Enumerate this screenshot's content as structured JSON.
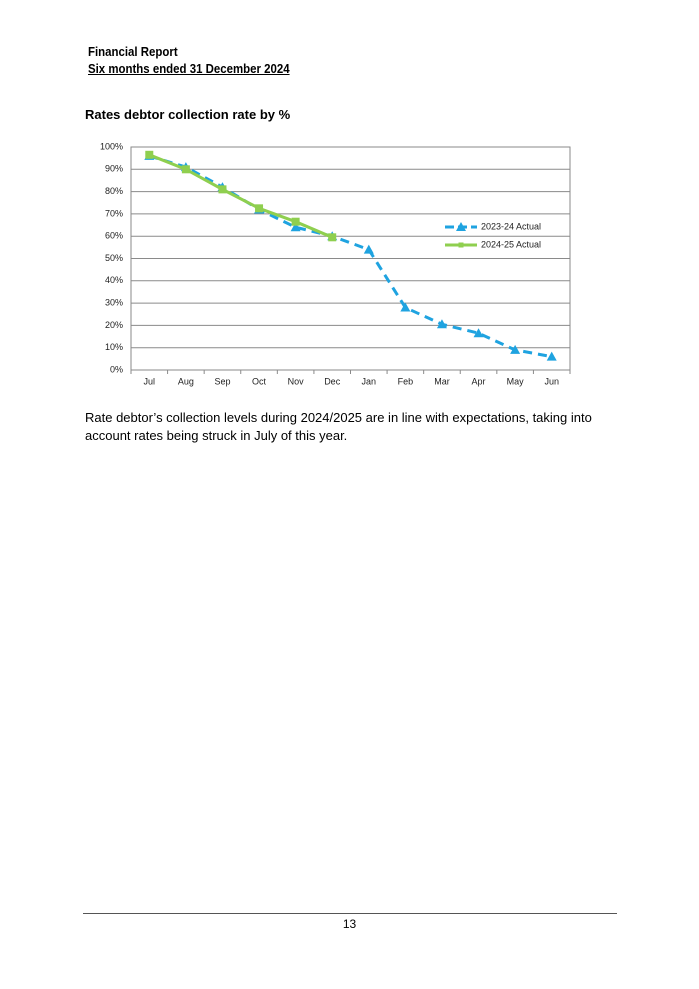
{
  "header": {
    "title": "Financial Report",
    "subtitle": "Six months ended 31 December 2024"
  },
  "section_title": "Rates debtor collection rate by %",
  "chart_data": {
    "type": "line",
    "categories": [
      "Jul",
      "Aug",
      "Sep",
      "Oct",
      "Nov",
      "Dec",
      "Jan",
      "Feb",
      "Mar",
      "Apr",
      "May",
      "Jun"
    ],
    "series": [
      {
        "name": "2023-24 Actual",
        "color": "#1fa3e0",
        "line_style": "dashed",
        "marker": "triangle",
        "values": [
          96,
          91,
          82,
          72,
          64,
          60,
          54,
          28,
          20.5,
          16.5,
          9,
          6
        ]
      },
      {
        "name": "2024-25 Actual",
        "color": "#8fcf4f",
        "line_style": "solid",
        "marker": "square",
        "values": [
          96.5,
          90,
          81,
          72.5,
          66.5,
          59.5,
          null,
          null,
          null,
          null,
          null,
          null
        ]
      }
    ],
    "ylim": [
      0,
      100
    ],
    "yticks": [
      {
        "value": 0,
        "label": "0%"
      },
      {
        "value": 10,
        "label": "10%"
      },
      {
        "value": 20,
        "label": "20%"
      },
      {
        "value": 30,
        "label": "30%"
      },
      {
        "value": 40,
        "label": "40%"
      },
      {
        "value": 50,
        "label": "50%"
      },
      {
        "value": 60,
        "label": "60%"
      },
      {
        "value": 70,
        "label": "70%"
      },
      {
        "value": 80,
        "label": "80%"
      },
      {
        "value": 90,
        "label": "90%"
      },
      {
        "value": 100,
        "label": "100%"
      }
    ],
    "grid": true,
    "legend": "right"
  },
  "body": "Rate debtor’s collection levels during 2024/2025 are in line with expectations, taking into account rates being struck in July of this year.",
  "page_number": "13"
}
